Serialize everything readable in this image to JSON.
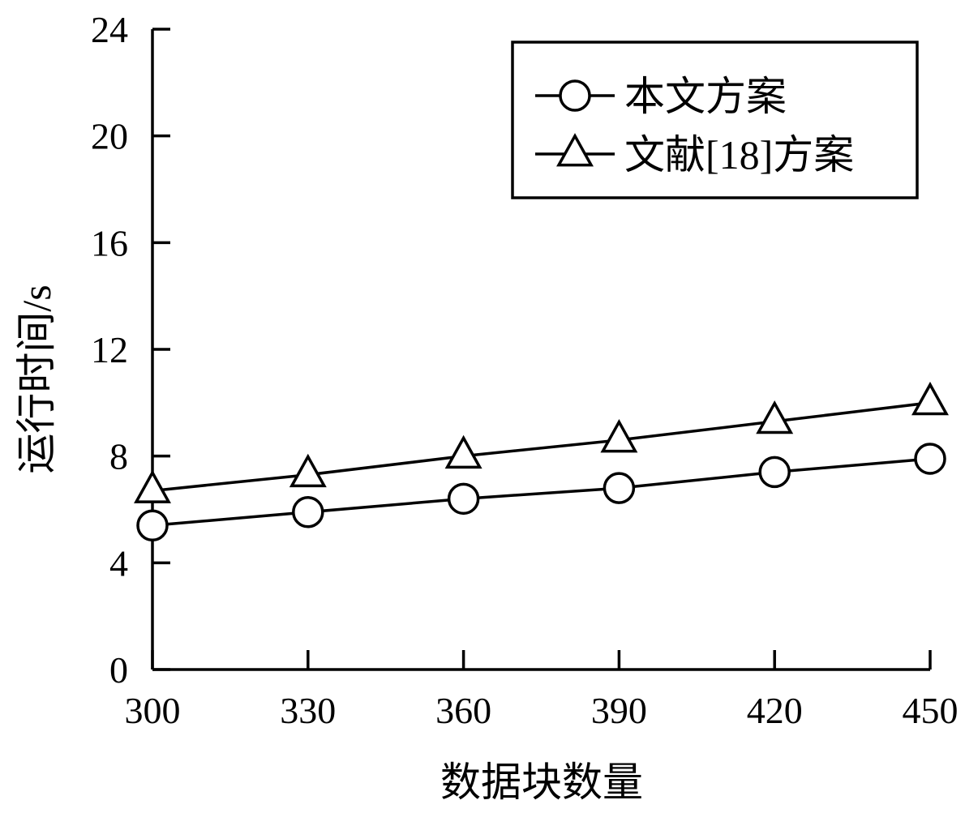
{
  "chart_data": {
    "type": "line",
    "xlabel": "数据块数量",
    "ylabel": "运行时间/s",
    "x": [
      300,
      330,
      360,
      390,
      420,
      450
    ],
    "xlim": [
      300,
      450
    ],
    "ylim": [
      0,
      24
    ],
    "xticks": [
      "300",
      "330",
      "360",
      "390",
      "420",
      "450"
    ],
    "yticks": [
      "0",
      "4",
      "8",
      "12",
      "16",
      "20",
      "24"
    ],
    "grid": false,
    "legend_position": "top-right",
    "series": [
      {
        "name": "本文方案",
        "marker": "circle",
        "color": "#000000",
        "values": [
          5.4,
          5.9,
          6.4,
          6.8,
          7.4,
          7.9
        ]
      },
      {
        "name": "文献[18]方案",
        "marker": "triangle",
        "color": "#000000",
        "values": [
          6.7,
          7.3,
          8.0,
          8.6,
          9.3,
          10.0
        ]
      }
    ]
  }
}
